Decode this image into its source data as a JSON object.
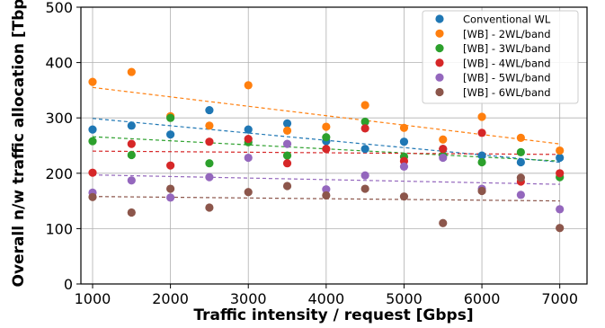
{
  "chart_data": {
    "type": "scatter",
    "title": "",
    "xlabel": "Traffic intensity / request [Gbps]",
    "ylabel": "Overall n/w traffic allocation [Tbps]",
    "xlim": [
      850,
      7350
    ],
    "ylim": [
      0,
      500
    ],
    "xticks": [
      "1000",
      "2000",
      "3000",
      "4000",
      "5000",
      "6000",
      "7000"
    ],
    "yticks": [
      "0",
      "100",
      "200",
      "300",
      "400",
      "500"
    ],
    "grid": true,
    "legend_position": "top-right",
    "x": [
      1000,
      1500,
      2000,
      2500,
      3000,
      3500,
      4000,
      4500,
      5000,
      5500,
      6000,
      6500,
      7000
    ],
    "series": [
      {
        "name": "Conventional WL",
        "color": "#1f77b4",
        "values": [
          279,
          286,
          270,
          314,
          279,
          290,
          258,
          244,
          257,
          244,
          232,
          220,
          228
        ],
        "trend": [
          299,
          220
        ]
      },
      {
        "name": "[WB] - 2WL/band",
        "color": "#ff7f0e",
        "values": [
          365,
          383,
          303,
          286,
          359,
          277,
          284,
          323,
          282,
          261,
          302,
          264,
          241
        ],
        "trend": [
          355,
          253
        ]
      },
      {
        "name": "[WB] - 3WL/band",
        "color": "#2ca02c",
        "values": [
          258,
          233,
          300,
          218,
          256,
          232,
          265,
          293,
          230,
          232,
          220,
          238,
          193
        ],
        "trend": [
          266,
          222
        ]
      },
      {
        "name": "[WB] - 4WL/band",
        "color": "#d62728",
        "values": [
          201,
          253,
          214,
          257,
          262,
          218,
          244,
          281,
          222,
          244,
          273,
          185,
          200
        ],
        "trend": [
          240,
          234
        ]
      },
      {
        "name": "[WB] - 5WL/band",
        "color": "#9467bd",
        "values": [
          165,
          187,
          156,
          193,
          228,
          253,
          171,
          196,
          212,
          228,
          172,
          161,
          135
        ],
        "trend": [
          197,
          180
        ]
      },
      {
        "name": "[WB] - 6WL/band",
        "color": "#8c564b",
        "values": [
          157,
          129,
          172,
          138,
          166,
          177,
          160,
          172,
          158,
          110,
          168,
          192,
          101
        ],
        "trend": [
          158,
          150
        ]
      }
    ]
  }
}
